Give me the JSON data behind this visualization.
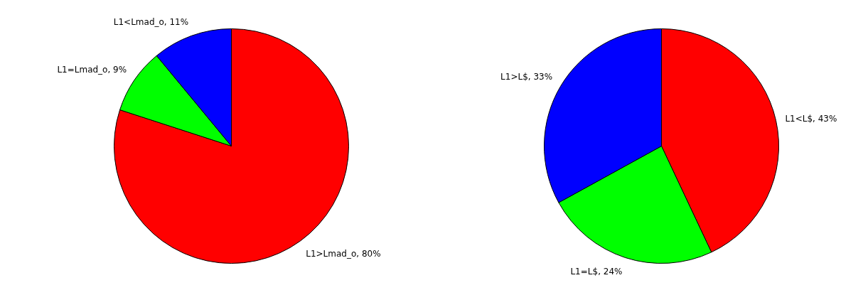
{
  "chart_data": [
    {
      "type": "pie",
      "categories": [
        "L1>Lmad_o",
        "L1=Lmad_o",
        "L1<Lmad_o"
      ],
      "values": [
        80,
        9,
        11
      ],
      "value_labels": [
        "80%",
        "9%",
        "11%"
      ],
      "colors": [
        "#ff0000",
        "#00ff00",
        "#0000ff"
      ]
    },
    {
      "type": "pie",
      "categories": [
        "L1<L$",
        "L1=L$",
        "L1>L$"
      ],
      "values": [
        43,
        24,
        33
      ],
      "value_labels": [
        "43%",
        "24%",
        "33%"
      ],
      "colors": [
        "#ff0000",
        "#00ff00",
        "#0000ff"
      ]
    }
  ]
}
